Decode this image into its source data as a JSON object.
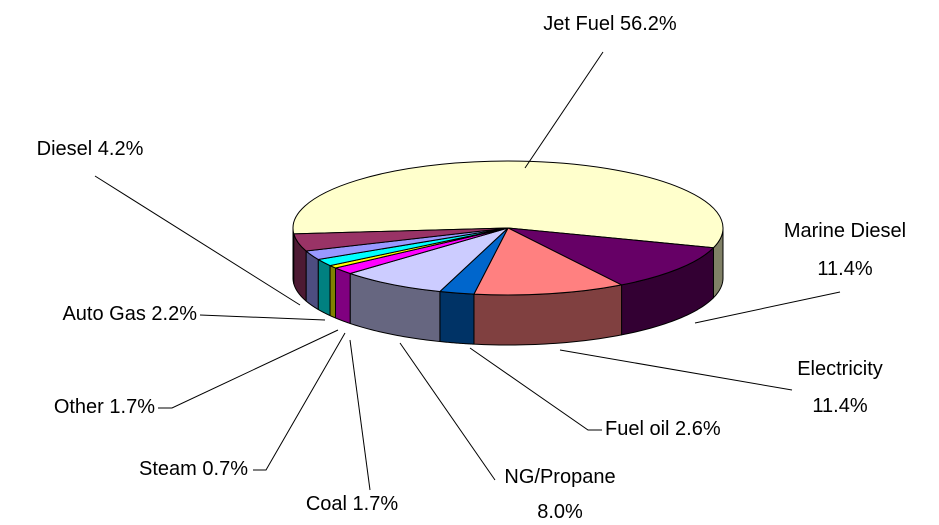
{
  "chart_data": {
    "type": "pie3d",
    "categories": [
      "Jet Fuel",
      "Marine Diesel",
      "Electricity",
      "Fuel oil",
      "NG/Propane",
      "Coal",
      "Steam",
      "Other",
      "Auto Gas",
      "Diesel"
    ],
    "values": [
      56.2,
      11.4,
      11.4,
      2.6,
      8.0,
      1.7,
      0.7,
      1.7,
      2.2,
      4.2
    ],
    "value_labels": [
      "56.2%",
      "11.4%",
      "11.4%",
      "2.6%",
      "8.0%",
      "1.7%",
      "0.7%",
      "1.7%",
      "2.2%",
      "4.2%"
    ],
    "colors": [
      "#ffffcc",
      "#660066",
      "#ff8080",
      "#0066cc",
      "#ccccff",
      "#ff00ff",
      "#ffff00",
      "#00ffff",
      "#9999ff",
      "#993366"
    ]
  }
}
